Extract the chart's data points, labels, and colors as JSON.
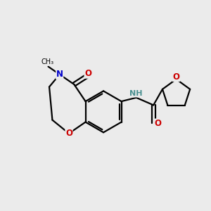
{
  "bg_color": "#ebebeb",
  "line_color": "#000000",
  "n_color": "#0000cc",
  "o_color": "#cc0000",
  "nh_color": "#4a9090",
  "line_width": 1.6,
  "figsize": [
    3.0,
    3.0
  ],
  "dpi": 100,
  "xlim": [
    0,
    10
  ],
  "ylim": [
    0,
    10
  ]
}
